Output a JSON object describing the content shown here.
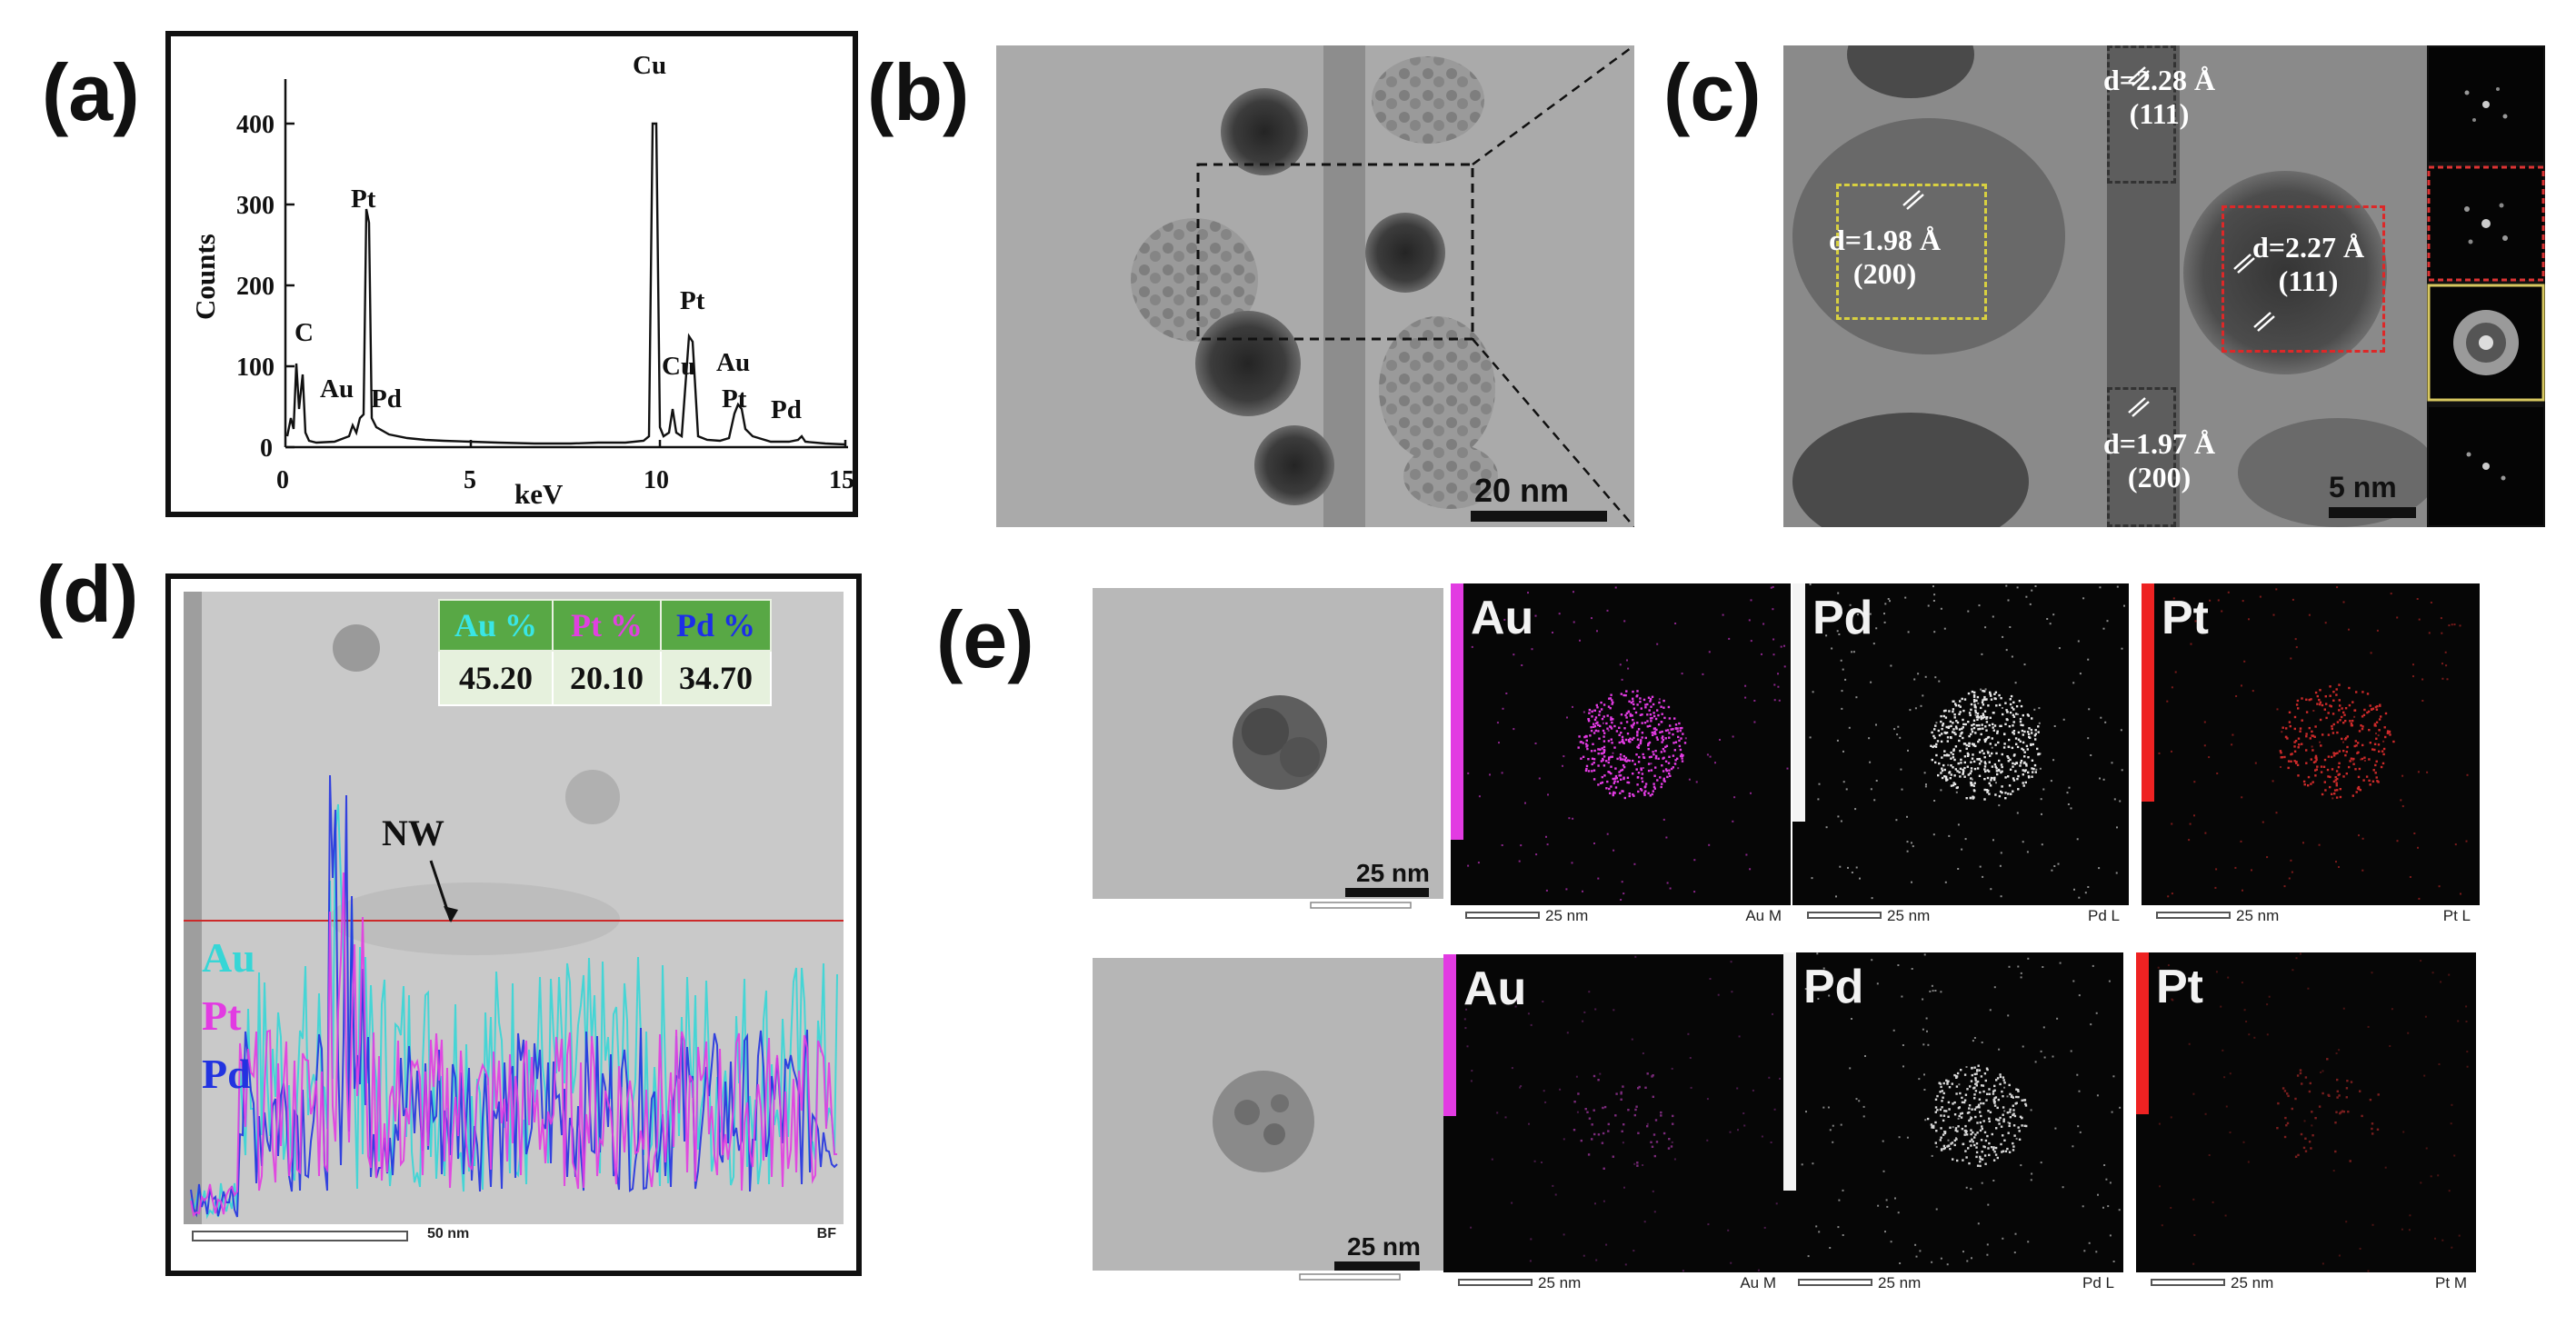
{
  "panels": {
    "a": {
      "letter": "(a)",
      "ylabel": "Counts",
      "xlabel": "keV",
      "xticks": [
        "0",
        "5",
        "10",
        "15"
      ],
      "yticks": [
        "0",
        "100",
        "200",
        "300",
        "400"
      ],
      "peak_labels": [
        "C",
        "Au",
        "Pd",
        "Pt",
        "Cu",
        "Cu",
        "Pt",
        "Au",
        "Pt",
        "Pd"
      ]
    },
    "b": {
      "letter": "(b)",
      "scale": "20 nm"
    },
    "c": {
      "letter": "(c)",
      "scale": "5 nm",
      "lattice": [
        {
          "d": "d=2.28 Å",
          "hkl": "(111)"
        },
        {
          "d": "d=1.98 Å",
          "hkl": "(200)"
        },
        {
          "d": "d=2.27 Å",
          "hkl": "(111)"
        },
        {
          "d": "d=1.97 Å",
          "hkl": "(200)"
        }
      ]
    },
    "d": {
      "letter": "(d)",
      "table_headers": [
        "Au %",
        "Pt %",
        "Pd %"
      ],
      "table_values": [
        "45.20",
        "20.10",
        "34.70"
      ],
      "header_colors": [
        "#39e6e6",
        "#e040e0",
        "#1c2ee8"
      ],
      "arrow_label": "NW",
      "legend": [
        "Au",
        "Pt",
        "Pd"
      ],
      "legend_colors": [
        "#36d6d6",
        "#e23be2",
        "#2233e0"
      ],
      "scale": "50 nm",
      "mode": "BF"
    },
    "e": {
      "letter": "(e)",
      "bf_scale": "25 nm",
      "rows": [
        {
          "maps": [
            {
              "label": "Au",
              "scale": "25 nm",
              "line": "Au M",
              "color": "#e23be2"
            },
            {
              "label": "Pd",
              "scale": "25 nm",
              "line": "Pd L",
              "color": "#ffffff"
            },
            {
              "label": "Pt",
              "scale": "25 nm",
              "line": "Pt L",
              "color": "#ee2222"
            }
          ]
        },
        {
          "maps": [
            {
              "label": "Au",
              "scale": "25 nm",
              "line": "Au M",
              "color": "#e23be2"
            },
            {
              "label": "Pd",
              "scale": "25 nm",
              "line": "Pd L",
              "color": "#ffffff"
            },
            {
              "label": "Pt",
              "scale": "25 nm",
              "line": "Pt M",
              "color": "#ee2222"
            }
          ]
        }
      ]
    }
  }
}
